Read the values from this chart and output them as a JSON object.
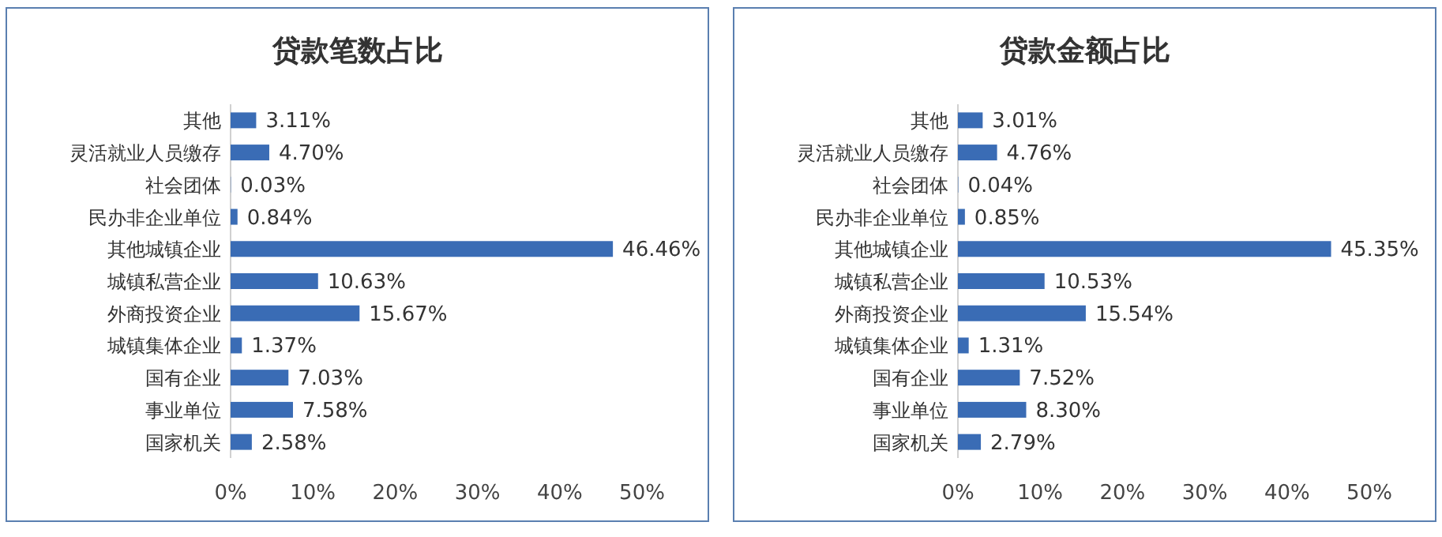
{
  "chart_data": [
    {
      "type": "bar",
      "orientation": "horizontal",
      "title": "贷款笔数占比",
      "color": "#3a6cb5",
      "categories": [
        "其他",
        "灵活就业人员缴存",
        "社会团体",
        "民办非企业单位",
        "其他城镇企业",
        "城镇私营企业",
        "外商投资企业",
        "城镇集体企业",
        "国有企业",
        "事业单位",
        "国家机关"
      ],
      "values": [
        3.11,
        4.7,
        0.03,
        0.84,
        46.46,
        10.63,
        15.67,
        1.37,
        7.03,
        7.58,
        2.58
      ],
      "value_labels": [
        "3.11%",
        "4.70%",
        "0.03%",
        "0.84%",
        "46.46%",
        "10.63%",
        "15.67%",
        "1.37%",
        "7.03%",
        "7.58%",
        "2.58%"
      ],
      "xlim": [
        0,
        50
      ],
      "xticks": [
        {
          "value": 0,
          "label": "0%"
        },
        {
          "value": 10,
          "label": "10%"
        },
        {
          "value": 20,
          "label": "20%"
        },
        {
          "value": 30,
          "label": "30%"
        },
        {
          "value": 40,
          "label": "40%"
        },
        {
          "value": 50,
          "label": "50%"
        }
      ]
    },
    {
      "type": "bar",
      "orientation": "horizontal",
      "title": "贷款金额占比",
      "color": "#3a6cb5",
      "categories": [
        "其他",
        "灵活就业人员缴存",
        "社会团体",
        "民办非企业单位",
        "其他城镇企业",
        "城镇私营企业",
        "外商投资企业",
        "城镇集体企业",
        "国有企业",
        "事业单位",
        "国家机关"
      ],
      "values": [
        3.01,
        4.76,
        0.04,
        0.85,
        45.35,
        10.53,
        15.54,
        1.31,
        7.52,
        8.3,
        2.79
      ],
      "value_labels": [
        "3.01%",
        "4.76%",
        "0.04%",
        "0.85%",
        "45.35%",
        "10.53%",
        "15.54%",
        "1.31%",
        "7.52%",
        "8.30%",
        "2.79%"
      ],
      "xlim": [
        0,
        50
      ],
      "xticks": [
        {
          "value": 0,
          "label": "0%"
        },
        {
          "value": 10,
          "label": "10%"
        },
        {
          "value": 20,
          "label": "20%"
        },
        {
          "value": 30,
          "label": "30%"
        },
        {
          "value": 40,
          "label": "40%"
        },
        {
          "value": 50,
          "label": "50%"
        }
      ]
    }
  ]
}
